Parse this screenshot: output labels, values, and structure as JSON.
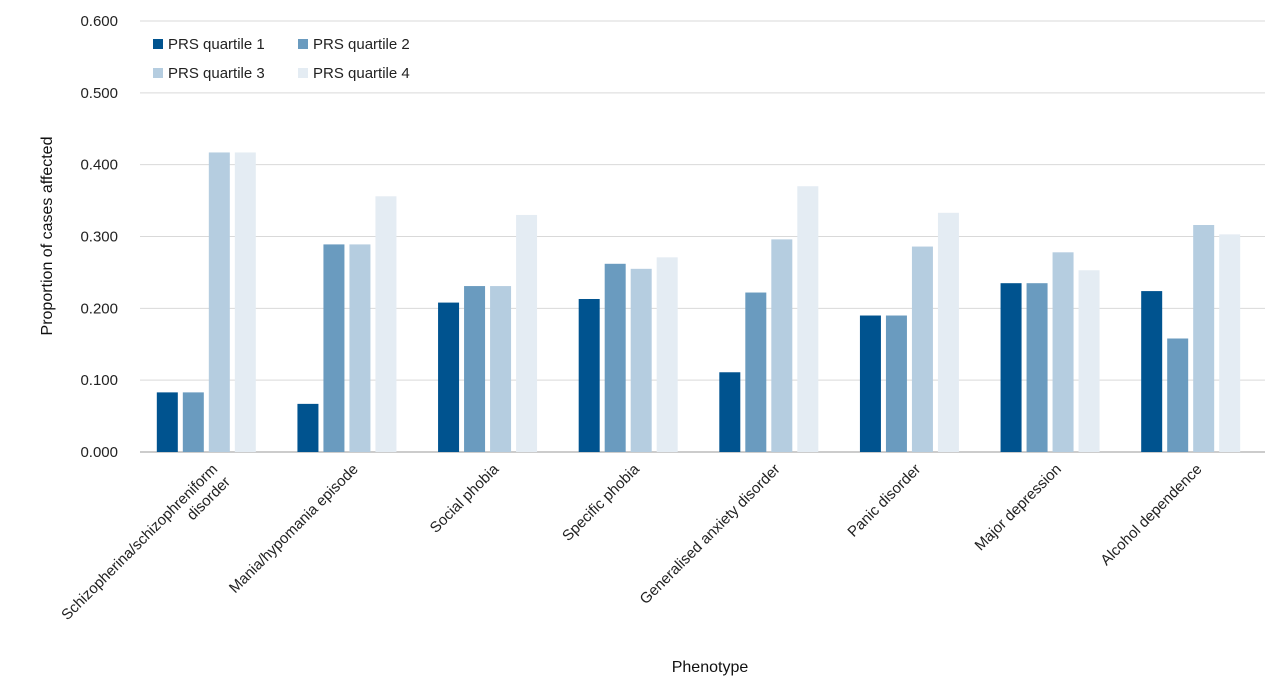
{
  "chart_data": {
    "type": "bar",
    "title": "",
    "xlabel": "Phenotype",
    "ylabel": "Proportion of cases affected",
    "ylim": [
      0,
      0.6
    ],
    "yticks": [
      "0.000",
      "0.100",
      "0.200",
      "0.300",
      "0.400",
      "0.500",
      "0.600"
    ],
    "grid": "horizontal",
    "legend_position": "top-left",
    "categories": [
      [
        "Schizopherina/schizophreniform",
        "disorder"
      ],
      [
        "Mania/hypomania episode"
      ],
      [
        "Social phobia"
      ],
      [
        "Specific phobia"
      ],
      [
        "Generalised anxiety disorder"
      ],
      [
        "Panic disorder"
      ],
      [
        "Major depression"
      ],
      [
        "Alcohol dependence"
      ]
    ],
    "series": [
      {
        "name": "PRS quartile 1",
        "color": "#00538f",
        "values": [
          0.083,
          0.067,
          0.208,
          0.213,
          0.111,
          0.19,
          0.235,
          0.224
        ]
      },
      {
        "name": "PRS quartile 2",
        "color": "#6a9bbf",
        "values": [
          0.083,
          0.289,
          0.231,
          0.262,
          0.222,
          0.19,
          0.235,
          0.158
        ]
      },
      {
        "name": "PRS quartile 3",
        "color": "#b5cde0",
        "values": [
          0.417,
          0.289,
          0.231,
          0.255,
          0.296,
          0.286,
          0.278,
          0.316
        ]
      },
      {
        "name": "PRS quartile 4",
        "color": "#e4ecf3",
        "values": [
          0.417,
          0.356,
          0.33,
          0.271,
          0.37,
          0.333,
          0.253,
          0.303
        ]
      }
    ]
  }
}
